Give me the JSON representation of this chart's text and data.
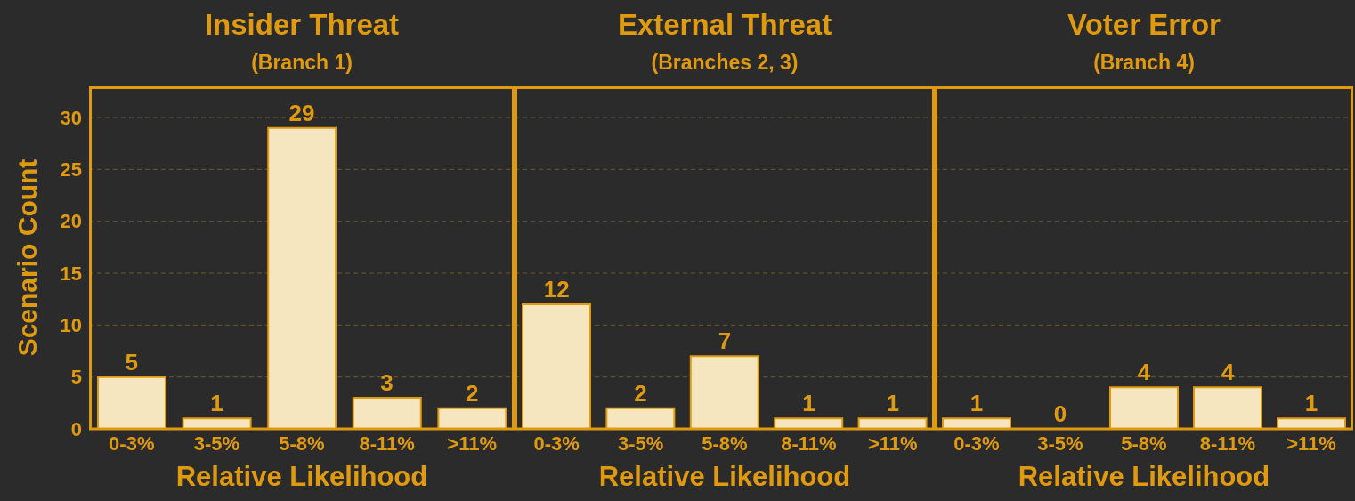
{
  "chart_data": [
    {
      "type": "bar",
      "title": "Insider Threat",
      "subtitle": "(Branch 1)",
      "xlabel": "Relative Likelihood",
      "ylabel": "Scenario Count",
      "categories": [
        "0-3%",
        "3-5%",
        "5-8%",
        "8-11%",
        ">11%"
      ],
      "values": [
        5,
        1,
        29,
        3,
        2
      ],
      "color": "#f5e6c0",
      "ylim": [
        0,
        33
      ],
      "yticks": [
        0,
        5,
        10,
        15,
        20,
        25,
        30
      ],
      "grid": "y",
      "data_labels": true
    },
    {
      "type": "bar",
      "title": "External Threat",
      "subtitle": "(Branches 2, 3)",
      "xlabel": "Relative Likelihood",
      "categories": [
        "0-3%",
        "3-5%",
        "5-8%",
        "8-11%",
        ">11%"
      ],
      "values": [
        12,
        2,
        7,
        1,
        1
      ],
      "color": "#f5e6c0",
      "ylim": [
        0,
        33
      ],
      "yticks": [
        0,
        5,
        10,
        15,
        20,
        25,
        30
      ],
      "grid": "y",
      "data_labels": true,
      "tick_labels": "x"
    },
    {
      "type": "bar",
      "title": "Voter Error",
      "subtitle": "(Branch 4)",
      "xlabel": "Relative Likelihood",
      "categories": [
        "0-3%",
        "3-5%",
        "5-8%",
        "8-11%",
        ">11%"
      ],
      "values": [
        1,
        0,
        4,
        4,
        1
      ],
      "color": "#f5e6c0",
      "ylim": [
        0,
        33
      ],
      "yticks": [
        0,
        5,
        10,
        15,
        20,
        25,
        30
      ],
      "grid": "y",
      "data_labels": true,
      "tick_labels": "x"
    }
  ]
}
